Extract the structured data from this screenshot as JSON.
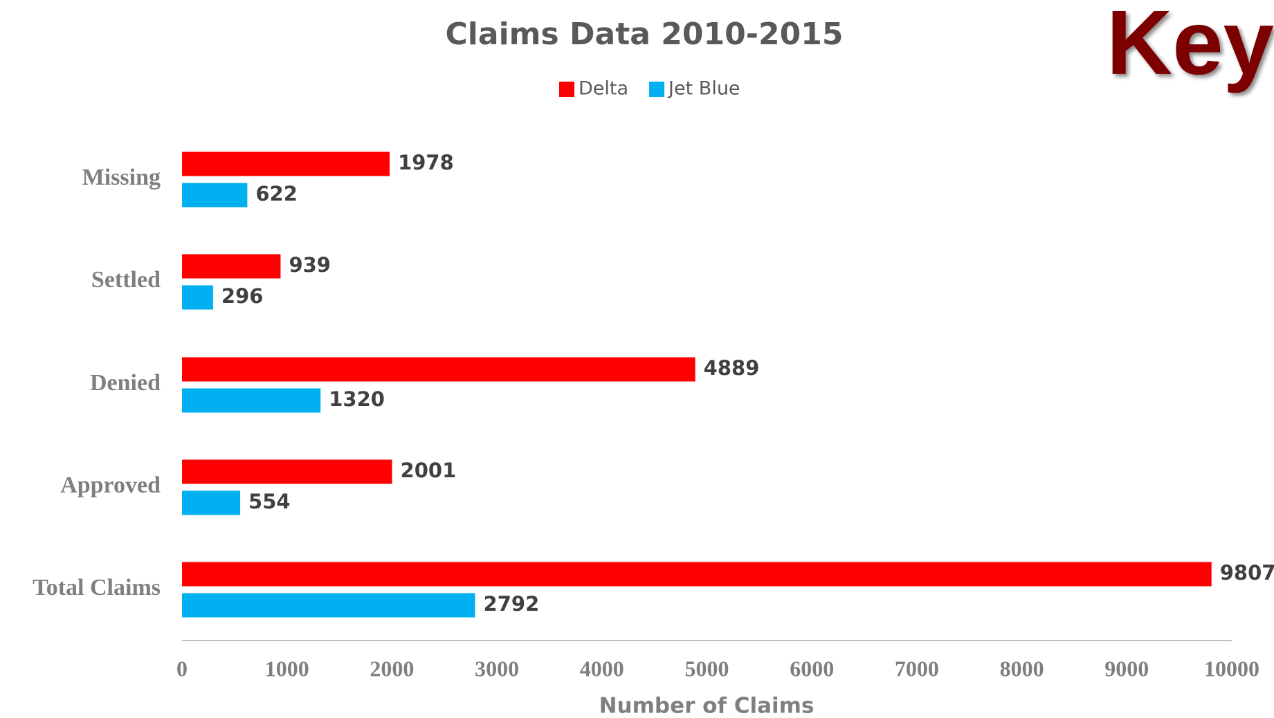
{
  "chart_data": {
    "type": "bar",
    "orientation": "horizontal",
    "title": "Claims Data 2010-2015",
    "annotation": "Key",
    "x_label": "Number of Claims",
    "categories": [
      "Missing",
      "Settled",
      "Denied",
      "Approved",
      "Total Claims"
    ],
    "series": [
      {
        "name": "Delta",
        "color": "#ff0000",
        "values": [
          1978,
          939,
          4889,
          2001,
          9807
        ]
      },
      {
        "name": "Jet Blue",
        "color": "#00b0f0",
        "values": [
          622,
          296,
          1320,
          554,
          2792
        ]
      }
    ],
    "xlim": [
      0,
      10000
    ],
    "xticks": [
      0,
      1000,
      2000,
      3000,
      4000,
      5000,
      6000,
      7000,
      8000,
      9000,
      10000
    ],
    "legend": "top",
    "grid": false
  }
}
